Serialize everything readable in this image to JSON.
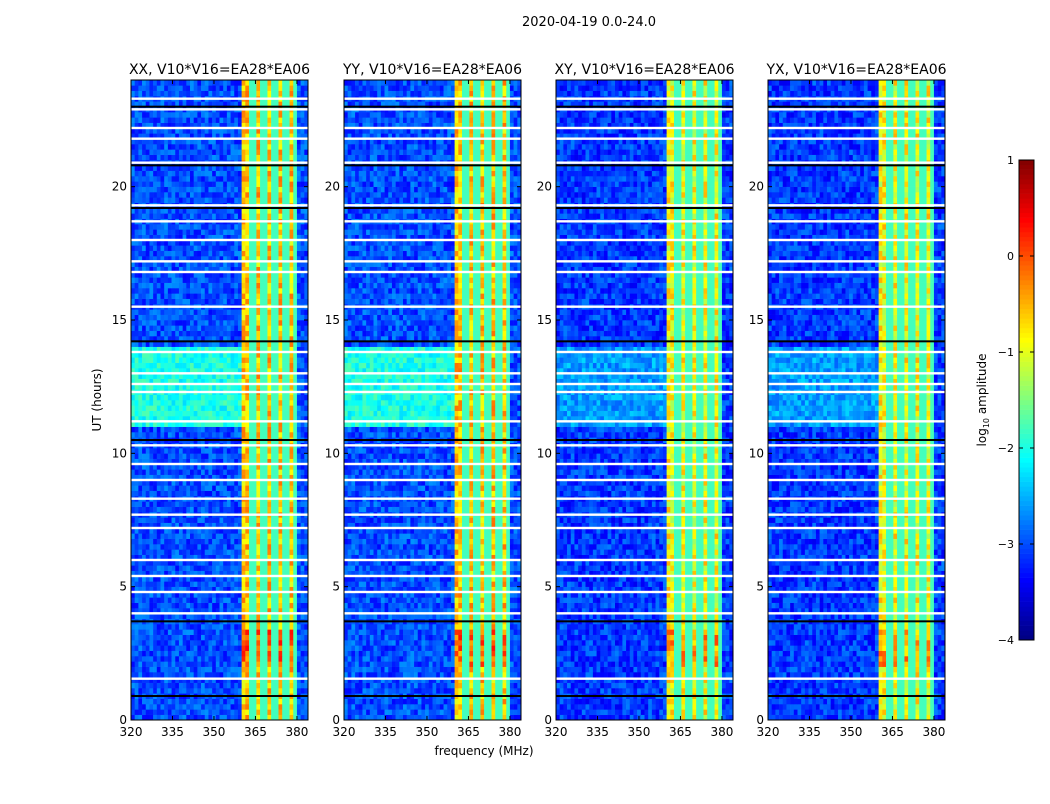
{
  "chart_data": {
    "type": "heatmap",
    "title": "2020-04-19 0.0-24.0",
    "xlabel": "frequency (MHz)",
    "ylabel": "UT (hours)",
    "xlim": [
      320,
      384
    ],
    "ylim": [
      0,
      24
    ],
    "xticks": [
      320,
      335,
      350,
      365,
      380
    ],
    "yticks": [
      0,
      5,
      10,
      15,
      20
    ],
    "colorbar": {
      "label": "log10 amplitude",
      "label_main": "log",
      "label_sub": "10",
      "label_rest": " amplitude",
      "colormap": "jet",
      "vmin": -4,
      "vmax": 1,
      "ticks": [
        1,
        0,
        -1,
        -2,
        -3,
        -4
      ],
      "tick_labels": [
        "1",
        "0",
        "−1",
        "−2",
        "−3",
        "−4"
      ]
    },
    "panels": [
      {
        "title": "XX, V10*V16=EA28*EA06",
        "background_level": -3.0,
        "band_level": -0.6,
        "elevated_hours": [
          11.0,
          14.0
        ],
        "elevated_level": -2.0
      },
      {
        "title": "YY, V10*V16=EA28*EA06",
        "background_level": -3.0,
        "band_level": -0.6,
        "elevated_hours": [
          11.0,
          14.0
        ],
        "elevated_level": -2.0
      },
      {
        "title": "XY, V10*V16=EA28*EA06",
        "background_level": -3.1,
        "band_level": -0.9,
        "elevated_hours": [
          11.0,
          14.0
        ],
        "elevated_level": -2.6
      },
      {
        "title": "YX, V10*V16=EA28*EA06",
        "background_level": -3.1,
        "band_level": -0.9,
        "elevated_hours": [
          11.0,
          14.0
        ],
        "elevated_level": -2.6
      }
    ],
    "rfi_band_mhz": [
      360,
      380
    ],
    "rfi_subband_edges_mhz": [
      364,
      368,
      372,
      376,
      380
    ],
    "strong_rfi_hours": [
      2.0,
      3.5
    ],
    "flagged_hours_white": [
      1.55,
      4.0,
      4.8,
      5.4,
      6.0,
      7.2,
      7.7,
      8.3,
      9.0,
      9.6,
      10.3,
      11.2,
      12.3,
      12.6,
      13.0,
      13.8,
      15.5,
      16.8,
      17.2,
      18.0,
      18.7,
      19.3,
      20.9,
      21.8,
      22.2,
      22.9,
      23.3
    ],
    "dark_lines_hours": [
      0.9,
      3.7,
      10.5,
      14.2,
      19.2,
      20.8,
      23.0
    ]
  }
}
